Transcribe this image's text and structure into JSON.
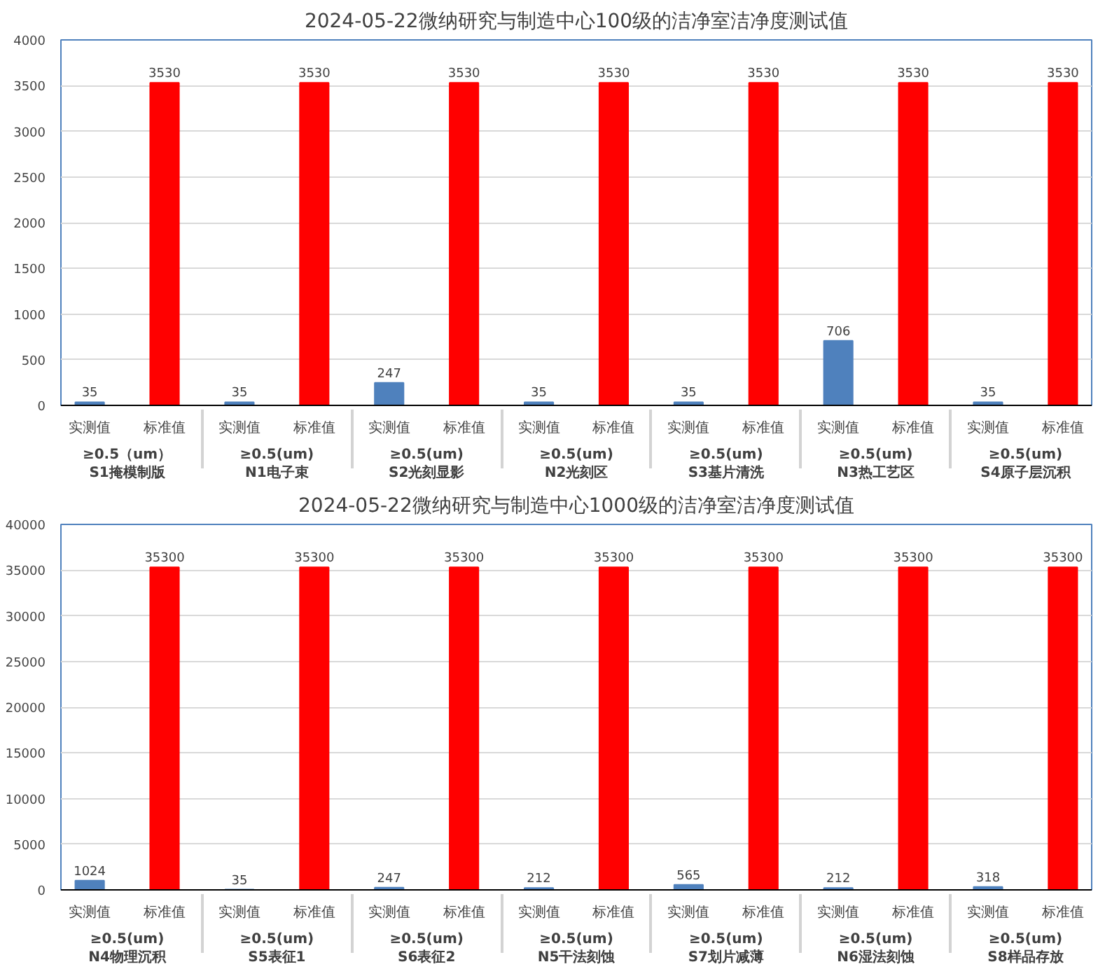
{
  "chart_data": [
    {
      "type": "bar",
      "title": "2024-05-22微纳研究与制造中心100级的洁净室洁净度测试值",
      "categories": [
        "≥0.5（um）\nS1掩模制版",
        "≥0.5(um)\nN1电子束",
        "≥0.5(um)\nS2光刻显影",
        "≥0.5(um)\nN2光刻区",
        "≥0.5(um)\nS3基片清洗",
        "≥0.5(um)\nN3热工艺区",
        "≥0.5(um)\nS4原子层沉积"
      ],
      "series": [
        {
          "name": "实测值",
          "color": "#4f81bd",
          "values": [
            35,
            35,
            247,
            35,
            35,
            706,
            35
          ]
        },
        {
          "name": "标准值",
          "color": "#ff0000",
          "values": [
            3530,
            3530,
            3530,
            3530,
            3530,
            3530,
            3530
          ]
        }
      ],
      "ylim": [
        0,
        4000
      ],
      "yticks": [
        0,
        500,
        1000,
        1500,
        2000,
        2500,
        3000,
        3500,
        4000
      ],
      "grid": "y",
      "data_labels": true
    },
    {
      "type": "bar",
      "title": "2024-05-22微纳研究与制造中心1000级的洁净室洁净度测试值",
      "categories": [
        "≥0.5(um)\nN4物理沉积",
        "≥0.5(um)\nS5表征1",
        "≥0.5(um)\nS6表征2",
        "≥0.5(um)\nN5干法刻蚀",
        "≥0.5(um)\nS7划片减薄",
        "≥0.5(um)\nN6湿法刻蚀",
        "≥0.5(um)\nS8样品存放"
      ],
      "series": [
        {
          "name": "实测值",
          "color": "#4f81bd",
          "values": [
            1024,
            35,
            247,
            212,
            565,
            212,
            318
          ]
        },
        {
          "name": "标准值",
          "color": "#ff0000",
          "values": [
            35300,
            35300,
            35300,
            35300,
            35300,
            35300,
            35300
          ]
        }
      ],
      "ylim": [
        0,
        40000
      ],
      "yticks": [
        0,
        5000,
        10000,
        15000,
        20000,
        25000,
        30000,
        35000,
        40000
      ],
      "grid": "y",
      "data_labels": true
    }
  ]
}
